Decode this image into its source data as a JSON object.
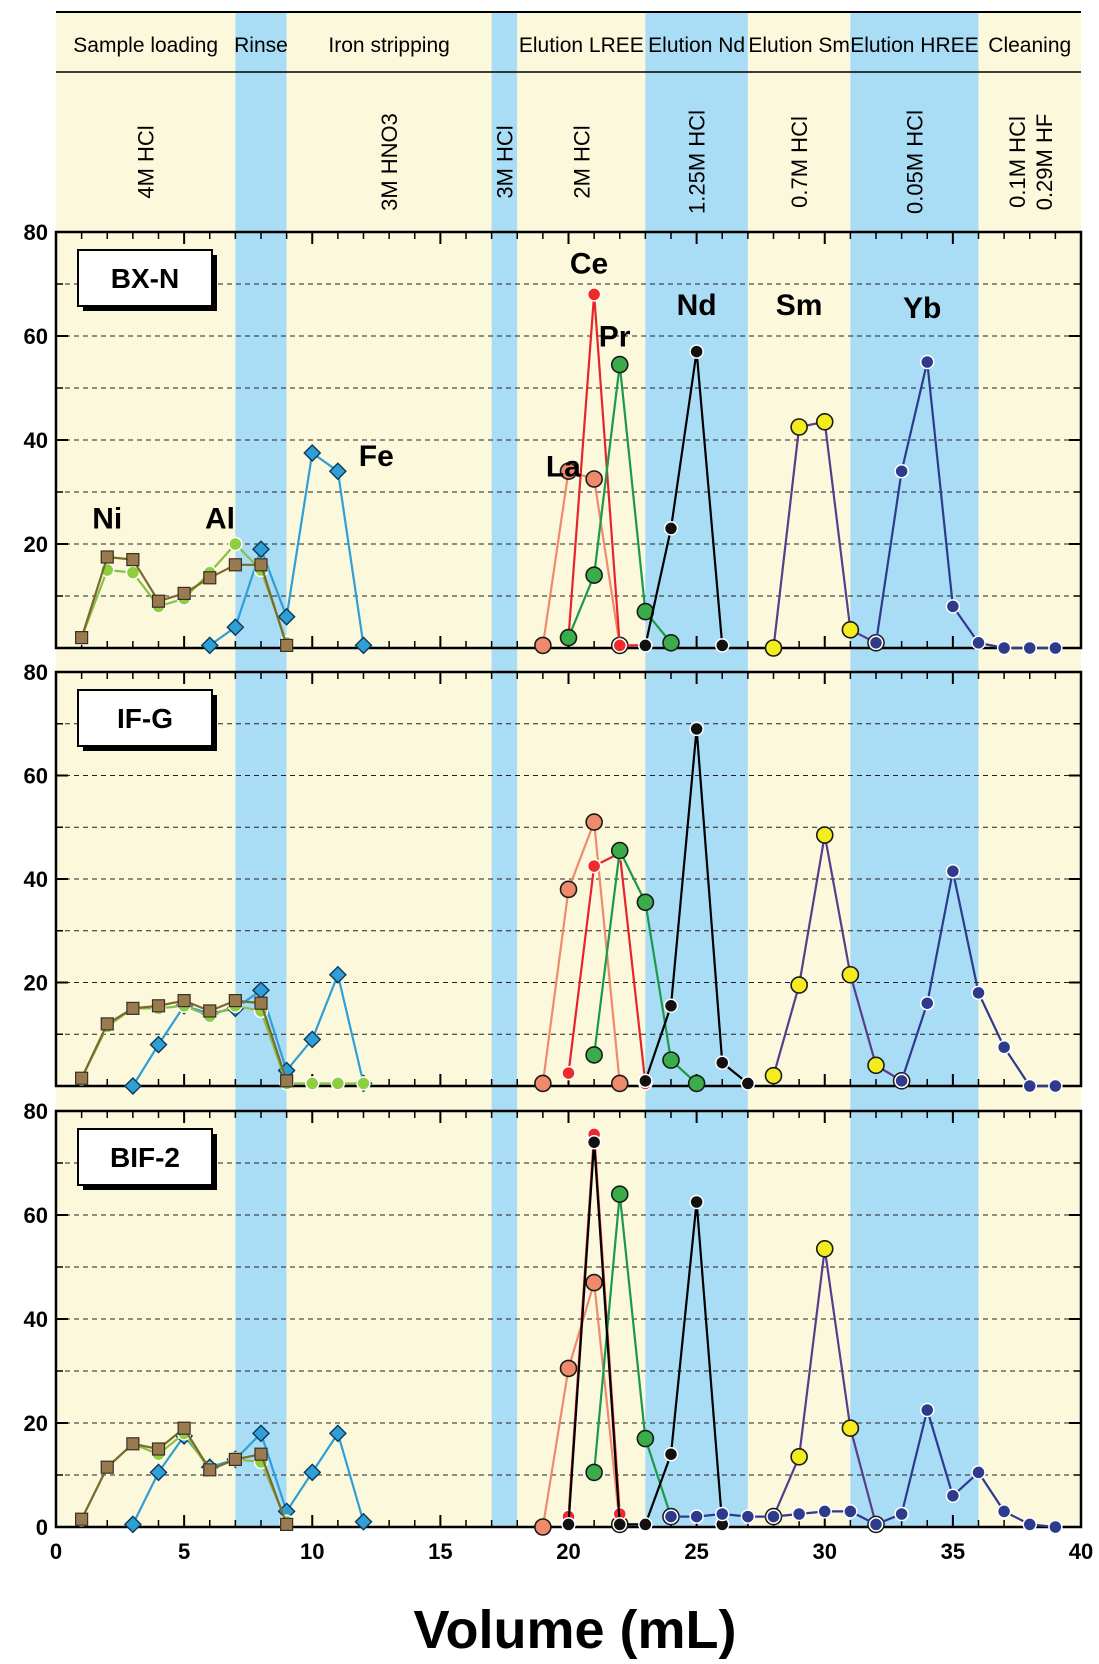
{
  "chart_data": {
    "type": "line",
    "xlabel": "Volume (mL)",
    "xlim": [
      0,
      40
    ],
    "ylim": [
      0,
      80
    ],
    "x_ticks": [
      0,
      5,
      10,
      15,
      20,
      25,
      30,
      35,
      40
    ],
    "y_ticks": [
      0,
      20,
      40,
      60,
      80
    ],
    "grid": "horizontal dashed every 10",
    "steps": [
      {
        "label": "Sample loading",
        "reagent": "4M HCl",
        "from": 0,
        "to": 7,
        "color": "#fbf8dc"
      },
      {
        "label": "Rinse",
        "reagent": "",
        "from": 7,
        "to": 9,
        "color": "#a9dcf5"
      },
      {
        "label": "Iron stripping",
        "reagent": "3M HNO3",
        "from": 9,
        "to": 17,
        "color": "#fbf8dc"
      },
      {
        "label": "",
        "reagent": "3M HCl",
        "from": 17,
        "to": 18,
        "color": "#a9dcf5"
      },
      {
        "label": "Elution LREE",
        "reagent": "2M HCl",
        "from": 18,
        "to": 23,
        "color": "#fbf8dc"
      },
      {
        "label": "Elution Nd",
        "reagent": "1.25M HCl",
        "from": 23,
        "to": 27,
        "color": "#a9dcf5"
      },
      {
        "label": "Elution Sm",
        "reagent": "0.7M HCl",
        "from": 27,
        "to": 31,
        "color": "#fbf8dc"
      },
      {
        "label": "Elution HREE",
        "reagent": "0.05M HCl",
        "from": 31,
        "to": 36,
        "color": "#a9dcf5"
      },
      {
        "label": "Cleaning",
        "reagent": "0.1M HCl",
        "reagent2": "0.29M HF",
        "from": 36,
        "to": 40,
        "color": "#fbf8dc"
      }
    ],
    "series_styles": {
      "Ni": {
        "line": "#7a6a2c",
        "fill": "#9a7b4f",
        "marker": "square",
        "label": "Ni"
      },
      "Al": {
        "line": "#8cbf4a",
        "fill": "#8fcf3f",
        "marker": "circle-small",
        "label": "Al"
      },
      "Fe": {
        "line": "#2f9fd6",
        "fill": "#2f9fd6",
        "marker": "diamond",
        "label": "Fe"
      },
      "La": {
        "line": "#f08a6c",
        "fill": "#f08a6c",
        "marker": "circle",
        "label": "La"
      },
      "Ce": {
        "line": "#e8232c",
        "fill": "#ee2a2a",
        "marker": "circle-small",
        "label": "Ce"
      },
      "Pr": {
        "line": "#1a9a4a",
        "fill": "#3aad4a",
        "marker": "circle",
        "label": "Pr"
      },
      "Nd": {
        "line": "#000000",
        "fill": "#111111",
        "marker": "circle-small",
        "label": "Nd"
      },
      "Sm": {
        "line": "#5a3c8c",
        "fill": "#f5ec1f",
        "marker": "circle",
        "label": "Sm"
      },
      "Yb": {
        "line": "#2e3a8c",
        "fill": "#2e3a8c",
        "marker": "circle-small",
        "label": "Yb"
      }
    },
    "panels": [
      {
        "sample": "BX-N",
        "show_series_labels": true,
        "series": [
          {
            "name": "Fe",
            "points": [
              [
                6,
                0.5
              ],
              [
                7,
                4
              ],
              [
                8,
                19
              ],
              [
                9,
                6
              ],
              [
                10,
                37.5
              ],
              [
                11,
                34
              ],
              [
                12,
                0.5
              ]
            ]
          },
          {
            "name": "Al",
            "points": [
              [
                1,
                2
              ],
              [
                2,
                15
              ],
              [
                3,
                14.5
              ],
              [
                4,
                8
              ],
              [
                5,
                9.5
              ],
              [
                6,
                14.5
              ],
              [
                7,
                20
              ],
              [
                8,
                15
              ],
              [
                9,
                1
              ]
            ]
          },
          {
            "name": "Ni",
            "points": [
              [
                1,
                2
              ],
              [
                2,
                17.5
              ],
              [
                3,
                17
              ],
              [
                4,
                9
              ],
              [
                5,
                10.5
              ],
              [
                6,
                13.5
              ],
              [
                7,
                16
              ],
              [
                8,
                16
              ],
              [
                9,
                0.5
              ]
            ]
          },
          {
            "name": "La",
            "points": [
              [
                19,
                0.5
              ],
              [
                20,
                34
              ],
              [
                21,
                32.5
              ],
              [
                22,
                0.5
              ]
            ]
          },
          {
            "name": "Ce",
            "points": [
              [
                20,
                2
              ],
              [
                21,
                68
              ],
              [
                22,
                0.5
              ],
              [
                23,
                0.5
              ]
            ]
          },
          {
            "name": "Pr",
            "points": [
              [
                20,
                2
              ],
              [
                21,
                14
              ],
              [
                22,
                54.5
              ],
              [
                23,
                7
              ],
              [
                24,
                1
              ]
            ]
          },
          {
            "name": "Nd",
            "points": [
              [
                23,
                0.5
              ],
              [
                24,
                23
              ],
              [
                25,
                57
              ],
              [
                26,
                0.5
              ]
            ]
          },
          {
            "name": "Sm",
            "points": [
              [
                28,
                0
              ],
              [
                29,
                42.5
              ],
              [
                30,
                43.5
              ],
              [
                31,
                3.5
              ],
              [
                32,
                1
              ]
            ]
          },
          {
            "name": "Yb",
            "points": [
              [
                32,
                1
              ],
              [
                33,
                34
              ],
              [
                34,
                55
              ],
              [
                35,
                8
              ],
              [
                36,
                1
              ],
              [
                37,
                0
              ],
              [
                38,
                0
              ],
              [
                39,
                0
              ]
            ]
          }
        ],
        "series_labels": [
          {
            "name": "Ni",
            "x": 2,
            "y": 23
          },
          {
            "name": "Al",
            "x": 6.4,
            "y": 23
          },
          {
            "name": "Fe",
            "x": 12.5,
            "y": 35
          },
          {
            "name": "La",
            "x": 19.8,
            "y": 33
          },
          {
            "name": "Ce",
            "x": 20.8,
            "y": 72
          },
          {
            "name": "Pr",
            "x": 21.8,
            "y": 58
          },
          {
            "name": "Nd",
            "x": 25,
            "y": 64
          },
          {
            "name": "Sm",
            "x": 29,
            "y": 64
          },
          {
            "name": "Yb",
            "x": 33.8,
            "y": 63.5
          }
        ]
      },
      {
        "sample": "IF-G",
        "show_series_labels": false,
        "series": [
          {
            "name": "Fe",
            "points": [
              [
                3,
                0
              ],
              [
                4,
                8
              ],
              [
                5,
                15.5
              ],
              [
                6,
                14
              ],
              [
                7,
                15
              ],
              [
                8,
                18.5
              ],
              [
                9,
                3
              ],
              [
                10,
                9
              ],
              [
                11,
                21.5
              ],
              [
                12,
                0.5
              ]
            ]
          },
          {
            "name": "Al",
            "points": [
              [
                1,
                1.5
              ],
              [
                2,
                11.5
              ],
              [
                3,
                15
              ],
              [
                4,
                15
              ],
              [
                5,
                15.5
              ],
              [
                6,
                13.5
              ],
              [
                7,
                15.5
              ],
              [
                8,
                14.5
              ],
              [
                9,
                0.5
              ],
              [
                10,
                0.5
              ],
              [
                11,
                0.5
              ],
              [
                12,
                0.5
              ]
            ]
          },
          {
            "name": "Ni",
            "points": [
              [
                1,
                1.5
              ],
              [
                2,
                12
              ],
              [
                3,
                15
              ],
              [
                4,
                15.5
              ],
              [
                5,
                16.5
              ],
              [
                6,
                14.5
              ],
              [
                7,
                16.5
              ],
              [
                8,
                16
              ],
              [
                9,
                1
              ]
            ]
          },
          {
            "name": "La",
            "points": [
              [
                19,
                0.5
              ],
              [
                20,
                38
              ],
              [
                21,
                51
              ],
              [
                22,
                0.5
              ]
            ]
          },
          {
            "name": "Ce",
            "points": [
              [
                20,
                2.5
              ],
              [
                21,
                42.5
              ],
              [
                22,
                45
              ],
              [
                23,
                0.5
              ]
            ]
          },
          {
            "name": "Pr",
            "points": [
              [
                21,
                6
              ],
              [
                22,
                45.5
              ],
              [
                23,
                35.5
              ],
              [
                24,
                5
              ],
              [
                25,
                0.5
              ]
            ]
          },
          {
            "name": "Nd",
            "points": [
              [
                23,
                1
              ],
              [
                24,
                15.5
              ],
              [
                25,
                69
              ],
              [
                26,
                4.5
              ],
              [
                27,
                0.5
              ]
            ]
          },
          {
            "name": "Sm",
            "points": [
              [
                28,
                2
              ],
              [
                29,
                19.5
              ],
              [
                30,
                48.5
              ],
              [
                31,
                21.5
              ],
              [
                32,
                4
              ],
              [
                33,
                1
              ]
            ]
          },
          {
            "name": "Yb",
            "points": [
              [
                33,
                1
              ],
              [
                34,
                16
              ],
              [
                35,
                41.5
              ],
              [
                36,
                18
              ],
              [
                37,
                7.5
              ],
              [
                38,
                0
              ],
              [
                39,
                0
              ]
            ]
          }
        ]
      },
      {
        "sample": "BIF-2",
        "show_series_labels": false,
        "series": [
          {
            "name": "Fe",
            "points": [
              [
                3,
                0.5
              ],
              [
                4,
                10.5
              ],
              [
                5,
                17.5
              ],
              [
                6,
                11.5
              ],
              [
                7,
                13
              ],
              [
                8,
                18
              ],
              [
                9,
                3
              ],
              [
                10,
                10.5
              ],
              [
                11,
                18
              ],
              [
                12,
                1
              ]
            ]
          },
          {
            "name": "Al",
            "points": [
              [
                1,
                1.5
              ],
              [
                2,
                11.5
              ],
              [
                3,
                16
              ],
              [
                4,
                14
              ],
              [
                5,
                18
              ],
              [
                6,
                11
              ],
              [
                7,
                13
              ],
              [
                8,
                12.5
              ],
              [
                9,
                1
              ]
            ]
          },
          {
            "name": "Ni",
            "points": [
              [
                1,
                1.5
              ],
              [
                2,
                11.5
              ],
              [
                3,
                16
              ],
              [
                4,
                15
              ],
              [
                5,
                19
              ],
              [
                6,
                11
              ],
              [
                7,
                13
              ],
              [
                8,
                14
              ],
              [
                9,
                0.5
              ]
            ]
          },
          {
            "name": "La",
            "points": [
              [
                19,
                0
              ],
              [
                20,
                30.5
              ],
              [
                21,
                47
              ],
              [
                22,
                0.5
              ]
            ]
          },
          {
            "name": "Ce",
            "points": [
              [
                20,
                2
              ],
              [
                21,
                75.5
              ],
              [
                22,
                2.5
              ]
            ]
          },
          {
            "name": "Pr",
            "points": [
              [
                21,
                10.5
              ],
              [
                22,
                64
              ],
              [
                23,
                17
              ],
              [
                24,
                2
              ]
            ]
          },
          {
            "name": "Nd",
            "points": [
              [
                20,
                0.5
              ],
              [
                21,
                74
              ],
              [
                22,
                0.5
              ],
              [
                23,
                0.5
              ],
              [
                24,
                14
              ],
              [
                25,
                62.5
              ],
              [
                26,
                0.5
              ]
            ]
          },
          {
            "name": "Sm",
            "points": [
              [
                28,
                2
              ],
              [
                29,
                13.5
              ],
              [
                30,
                53.5
              ],
              [
                31,
                19
              ],
              [
                32,
                0.5
              ]
            ]
          },
          {
            "name": "Yb",
            "points": [
              [
                24,
                2
              ],
              [
                25,
                2
              ],
              [
                26,
                2.5
              ],
              [
                27,
                2
              ],
              [
                28,
                2
              ],
              [
                29,
                2.5
              ],
              [
                30,
                3
              ],
              [
                31,
                3
              ],
              [
                32,
                0.5
              ],
              [
                33,
                2.5
              ],
              [
                34,
                22.5
              ],
              [
                35,
                6
              ],
              [
                36,
                10.5
              ],
              [
                37,
                3
              ],
              [
                38,
                0.5
              ],
              [
                39,
                0
              ]
            ]
          }
        ]
      }
    ]
  }
}
